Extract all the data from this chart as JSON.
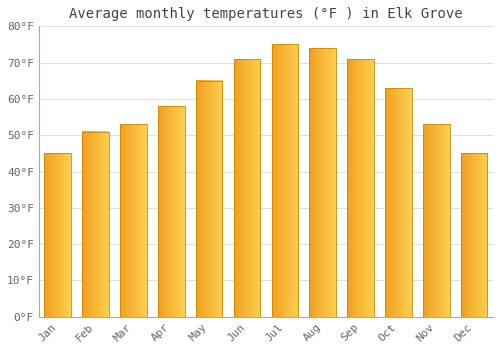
{
  "title": "Average monthly temperatures (°F ) in Elk Grove",
  "months": [
    "Jan",
    "Feb",
    "Mar",
    "Apr",
    "May",
    "Jun",
    "Jul",
    "Aug",
    "Sep",
    "Oct",
    "Nov",
    "Dec"
  ],
  "values": [
    45,
    51,
    53,
    58,
    65,
    71,
    75,
    74,
    71,
    63,
    53,
    45
  ],
  "bar_color_left": "#F0A020",
  "bar_color_right": "#FFD050",
  "bar_edge_color": "#CC8800",
  "background_color": "#FFFFFF",
  "grid_color": "#E0E0E0",
  "ylim": [
    0,
    80
  ],
  "yticks": [
    0,
    10,
    20,
    30,
    40,
    50,
    60,
    70,
    80
  ],
  "ytick_labels": [
    "0°F",
    "10°F",
    "20°F",
    "30°F",
    "40°F",
    "50°F",
    "60°F",
    "70°F",
    "80°F"
  ],
  "title_fontsize": 10,
  "tick_fontsize": 8,
  "tick_color": "#666666",
  "title_color": "#444444",
  "bar_width": 0.7
}
